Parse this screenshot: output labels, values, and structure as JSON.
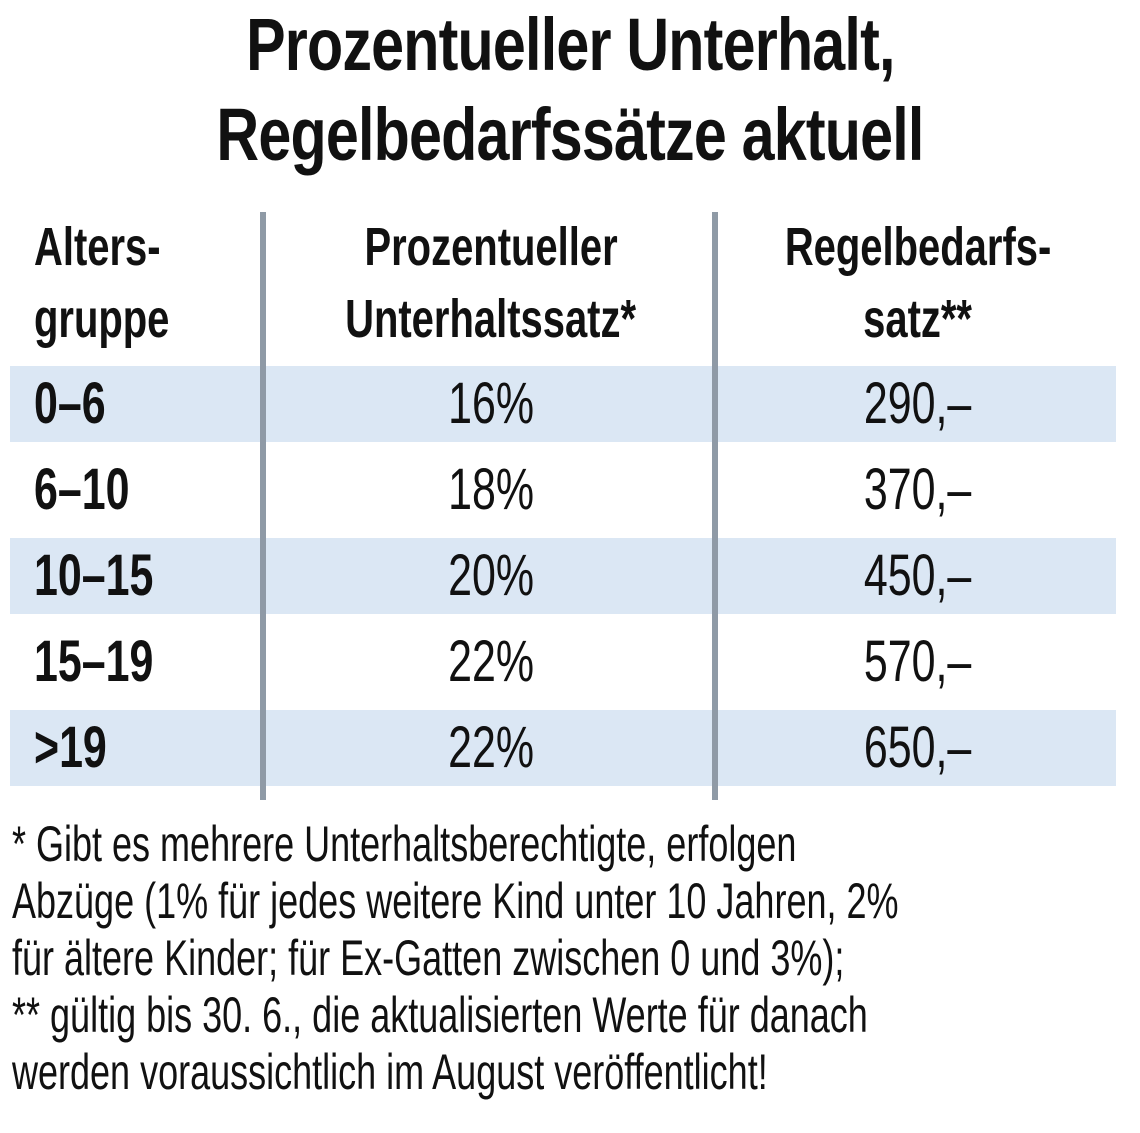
{
  "title": {
    "line1": "Prozentueller Unterhalt,",
    "line2": "Regelbedarfssätze aktuell"
  },
  "table": {
    "headers": {
      "age": [
        "Alters-",
        "gruppe"
      ],
      "percent": [
        "Prozentueller",
        "Unterhaltssatz*"
      ],
      "amount": [
        "Regelbedarfs-",
        "satz**"
      ]
    },
    "rows": [
      {
        "age": "0–6",
        "percent": "16%",
        "amount": "290,–",
        "shaded": true
      },
      {
        "age": "6–10",
        "percent": "18%",
        "amount": "370,–",
        "shaded": false
      },
      {
        "age": "10–15",
        "percent": "20%",
        "amount": "450,–",
        "shaded": true
      },
      {
        "age": "15–19",
        "percent": "22%",
        "amount": "570,–",
        "shaded": false
      },
      {
        "age": ">19",
        "percent": "22%",
        "amount": "650,–",
        "shaded": true
      }
    ]
  },
  "footnotes": [
    "* Gibt es mehrere Unterhaltsberechtigte, erfolgen",
    "Abzüge (1% für jedes weitere Kind unter 10 Jahren, 2%",
    "für ältere Kinder; für Ex-Gatten zwischen 0 und 3%);",
    "** gültig bis 30. 6., die aktualisierten Werte für danach",
    "werden voraussichtlich im August veröffentlicht!"
  ],
  "colors": {
    "row_shade": "#dbe7f4",
    "divider": "#8f9aa6",
    "text": "#111111"
  }
}
